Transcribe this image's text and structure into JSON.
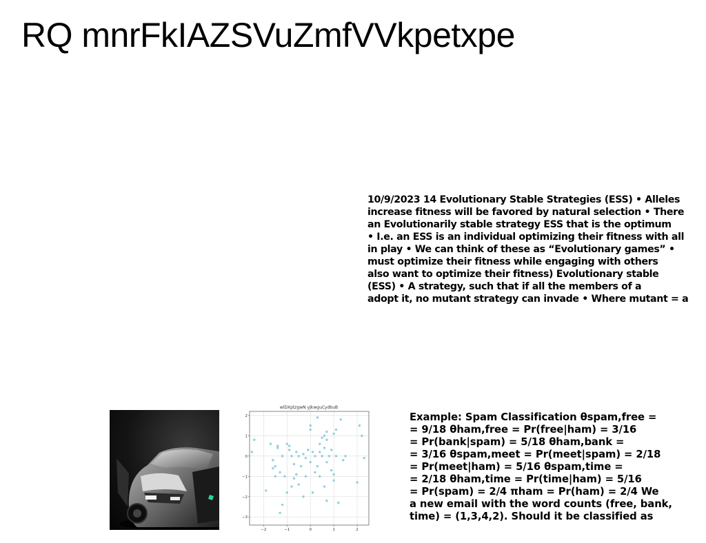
{
  "title": "RQ mnrFkIAZSVuZmfVVkpetxpe",
  "ess_lines": [
    "10/9/2023 14 Evolutionary Stable Strategies (ESS) • Alleles",
    "increase fitness will be favored by natural selection • There",
    "an Evolutionarily stable strategy ESS that is the optimum",
    "• I.e. an ESS is an individual optimizing their fitness with all",
    "in play • We can think of these as “Evolutionary games” •",
    "must optimize their fitness while engaging with others",
    "also want to optimize their fitness) Evolutionary stable",
    "(ESS) • A strategy, such that if all the members of a",
    "adopt it, no mutant strategy can invade • Where mutant =  a"
  ],
  "spam_lines": [
    "Example: Spam Classification θspam,free =",
    "= 9/18 θham,free = Pr(free|ham) = 3/16",
    "= Pr(bank|spam) = 5/18 θham,bank =",
    "= 3/16 θspam,meet = Pr(meet|spam) = 2/18",
    "= Pr(meet|ham) = 5/16 θspam,time =",
    "= 2/18 θham,time = Pr(time|ham) = 5/16",
    "= Pr(spam) = 2/4 πham = Pr(ham) = 2/4 We",
    "a new email with the word counts (free, bank,",
    "time) = (1,3,4,2). Should it be classified as"
  ],
  "chart_data": {
    "type": "scatter",
    "title": "wlDXptzgwN yJkwguCydbuB",
    "xlabel": "",
    "ylabel": "",
    "xlim": [
      -2.6,
      2.5
    ],
    "ylim": [
      -3.4,
      2.2
    ],
    "xticks": [
      -2,
      -1,
      0,
      1,
      2
    ],
    "yticks": [
      -3,
      -2,
      -1,
      0,
      1,
      2
    ],
    "grid": true,
    "point_color": "#7ec8d8",
    "points": [
      [
        -2.5,
        0.2
      ],
      [
        -2.4,
        0.8
      ],
      [
        -1.9,
        -1.7
      ],
      [
        -1.7,
        0.6
      ],
      [
        -1.6,
        -0.2
      ],
      [
        -1.6,
        -0.6
      ],
      [
        -1.5,
        -0.5
      ],
      [
        -1.5,
        -1.0
      ],
      [
        -1.4,
        0.4
      ],
      [
        -1.4,
        0.5
      ],
      [
        -1.3,
        -0.8
      ],
      [
        -1.3,
        -2.8
      ],
      [
        -1.2,
        -2.4
      ],
      [
        -1.2,
        0.0
      ],
      [
        -1.1,
        -1.0
      ],
      [
        -1.0,
        -1.8
      ],
      [
        -1.0,
        0.6
      ],
      [
        -0.9,
        0.3
      ],
      [
        -0.9,
        0.5
      ],
      [
        -0.8,
        0.0
      ],
      [
        -0.8,
        -1.5
      ],
      [
        -0.7,
        -1.1
      ],
      [
        -0.7,
        -0.4
      ],
      [
        -0.6,
        0.2
      ],
      [
        -0.6,
        -0.9
      ],
      [
        -0.5,
        0.0
      ],
      [
        -0.5,
        -1.4
      ],
      [
        -0.4,
        -0.5
      ],
      [
        -0.3,
        0.1
      ],
      [
        -0.2,
        -0.1
      ],
      [
        -0.2,
        -1.0
      ],
      [
        -0.1,
        0.3
      ],
      [
        0.0,
        1.3
      ],
      [
        0.0,
        1.5
      ],
      [
        0.0,
        -0.3
      ],
      [
        0.1,
        0.2
      ],
      [
        0.1,
        -1.8
      ],
      [
        0.2,
        -0.8
      ],
      [
        0.2,
        0.0
      ],
      [
        0.3,
        1.9
      ],
      [
        0.3,
        -0.5
      ],
      [
        0.4,
        0.6
      ],
      [
        0.4,
        -1.0
      ],
      [
        0.5,
        0.9
      ],
      [
        0.5,
        0.0
      ],
      [
        0.6,
        1.0
      ],
      [
        0.6,
        -1.5
      ],
      [
        0.6,
        0.4
      ],
      [
        0.7,
        0.8
      ],
      [
        0.7,
        1.2
      ],
      [
        0.7,
        -0.3
      ],
      [
        0.7,
        -2.2
      ],
      [
        0.8,
        0.0
      ],
      [
        0.9,
        -0.7
      ],
      [
        0.9,
        0.3
      ],
      [
        1.0,
        1.1
      ],
      [
        1.0,
        -1.2
      ],
      [
        1.1,
        0.0
      ],
      [
        1.1,
        1.3
      ],
      [
        1.2,
        -2.3
      ],
      [
        1.3,
        1.8
      ],
      [
        1.4,
        -0.2
      ],
      [
        1.5,
        0.0
      ],
      [
        2.0,
        -1.3
      ],
      [
        2.1,
        1.5
      ],
      [
        2.2,
        1.0
      ],
      [
        2.3,
        -0.1
      ],
      [
        1.0,
        -0.9
      ],
      [
        -0.3,
        -2.0
      ],
      [
        0.4,
        0.2
      ]
    ]
  }
}
